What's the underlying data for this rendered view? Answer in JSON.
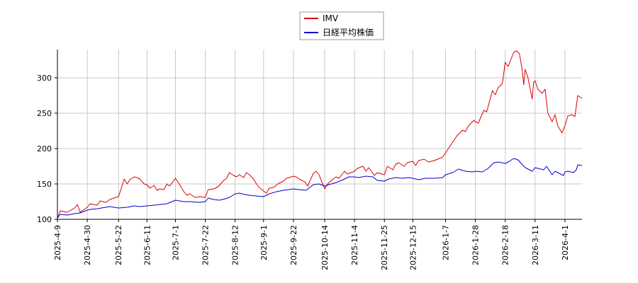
{
  "chart_data": {
    "type": "line",
    "title": "",
    "xlabel": "",
    "ylabel": "",
    "ylim": [
      100,
      340
    ],
    "xlim": [
      "2025-04-09",
      "2026-04-13"
    ],
    "grid": true,
    "legend_position": "top-center",
    "y_ticks": [
      100,
      150,
      200,
      250,
      300
    ],
    "x_ticks": [
      "2025-4-9",
      "2025-4-30",
      "2025-5-22",
      "2025-6-11",
      "2025-7-1",
      "2025-7-22",
      "2025-8-12",
      "2025-9-1",
      "2025-9-22",
      "2025-10-14",
      "2025-11-4",
      "2025-11-25",
      "2025-12-15",
      "2026-1-7",
      "2026-1-28",
      "2026-2-18",
      "2026-3-11",
      "2026-4-1"
    ],
    "x_tick_dates": [
      "2025-04-09",
      "2025-04-30",
      "2025-05-22",
      "2025-06-11",
      "2025-07-01",
      "2025-07-22",
      "2025-08-12",
      "2025-09-01",
      "2025-09-22",
      "2025-10-14",
      "2025-11-04",
      "2025-11-25",
      "2025-12-15",
      "2026-01-07",
      "2026-01-28",
      "2026-02-18",
      "2026-03-11",
      "2026-04-01"
    ],
    "series": [
      {
        "name": "IMV",
        "color": "#dd0000",
        "points": [
          [
            "2025-04-09",
            102
          ],
          [
            "2025-04-11",
            112
          ],
          [
            "2025-04-16",
            110
          ],
          [
            "2025-04-21",
            116
          ],
          [
            "2025-04-23",
            121
          ],
          [
            "2025-04-25",
            110
          ],
          [
            "2025-04-30",
            117
          ],
          [
            "2025-05-02",
            122
          ],
          [
            "2025-05-07",
            120
          ],
          [
            "2025-05-09",
            126
          ],
          [
            "2025-05-13",
            124
          ],
          [
            "2025-05-16",
            128
          ],
          [
            "2025-05-20",
            131
          ],
          [
            "2025-05-22",
            132
          ],
          [
            "2025-05-26",
            157
          ],
          [
            "2025-05-28",
            150
          ],
          [
            "2025-05-30",
            156
          ],
          [
            "2025-06-02",
            160
          ],
          [
            "2025-06-04",
            159
          ],
          [
            "2025-06-06",
            157
          ],
          [
            "2025-06-09",
            150
          ],
          [
            "2025-06-11",
            149
          ],
          [
            "2025-06-13",
            144
          ],
          [
            "2025-06-16",
            148
          ],
          [
            "2025-06-18",
            141
          ],
          [
            "2025-06-20",
            143
          ],
          [
            "2025-06-23",
            142
          ],
          [
            "2025-06-25",
            150
          ],
          [
            "2025-06-27",
            147
          ],
          [
            "2025-07-01",
            158
          ],
          [
            "2025-07-03",
            152
          ],
          [
            "2025-07-07",
            139
          ],
          [
            "2025-07-09",
            134
          ],
          [
            "2025-07-11",
            136
          ],
          [
            "2025-07-15",
            131
          ],
          [
            "2025-07-18",
            132
          ],
          [
            "2025-07-22",
            131
          ],
          [
            "2025-07-24",
            142
          ],
          [
            "2025-07-28",
            143
          ],
          [
            "2025-07-31",
            146
          ],
          [
            "2025-08-04",
            155
          ],
          [
            "2025-08-06",
            158
          ],
          [
            "2025-08-08",
            166
          ],
          [
            "2025-08-11",
            162
          ],
          [
            "2025-08-13",
            160
          ],
          [
            "2025-08-15",
            163
          ],
          [
            "2025-08-18",
            159
          ],
          [
            "2025-08-20",
            166
          ],
          [
            "2025-08-22",
            163
          ],
          [
            "2025-08-25",
            157
          ],
          [
            "2025-08-27",
            150
          ],
          [
            "2025-08-29",
            145
          ],
          [
            "2025-09-01",
            140
          ],
          [
            "2025-09-03",
            137
          ],
          [
            "2025-09-05",
            144
          ],
          [
            "2025-09-08",
            145
          ],
          [
            "2025-09-11",
            150
          ],
          [
            "2025-09-15",
            154
          ],
          [
            "2025-09-17",
            158
          ],
          [
            "2025-09-19",
            159
          ],
          [
            "2025-09-22",
            161
          ],
          [
            "2025-09-24",
            160
          ],
          [
            "2025-09-26",
            157
          ],
          [
            "2025-09-30",
            153
          ],
          [
            "2025-10-02",
            147
          ],
          [
            "2025-10-06",
            165
          ],
          [
            "2025-10-08",
            168
          ],
          [
            "2025-10-10",
            163
          ],
          [
            "2025-10-14",
            143
          ],
          [
            "2025-10-16",
            150
          ],
          [
            "2025-10-20",
            157
          ],
          [
            "2025-10-22",
            160
          ],
          [
            "2025-10-24",
            158
          ],
          [
            "2025-10-28",
            168
          ],
          [
            "2025-10-30",
            164
          ],
          [
            "2025-11-04",
            168
          ],
          [
            "2025-11-06",
            172
          ],
          [
            "2025-11-10",
            175
          ],
          [
            "2025-11-12",
            168
          ],
          [
            "2025-11-14",
            173
          ],
          [
            "2025-11-18",
            162
          ],
          [
            "2025-11-20",
            166
          ],
          [
            "2025-11-25",
            163
          ],
          [
            "2025-11-27",
            175
          ],
          [
            "2025-12-01",
            170
          ],
          [
            "2025-12-03",
            178
          ],
          [
            "2025-12-05",
            180
          ],
          [
            "2025-12-09",
            175
          ],
          [
            "2025-12-11",
            180
          ],
          [
            "2025-12-15",
            182
          ],
          [
            "2025-12-17",
            176
          ],
          [
            "2025-12-19",
            183
          ],
          [
            "2025-12-23",
            185
          ],
          [
            "2025-12-26",
            181
          ],
          [
            "2025-12-30",
            183
          ],
          [
            "2026-01-05",
            188
          ],
          [
            "2026-01-07",
            194
          ],
          [
            "2026-01-09",
            200
          ],
          [
            "2026-01-13",
            212
          ],
          [
            "2026-01-15",
            218
          ],
          [
            "2026-01-19",
            226
          ],
          [
            "2026-01-21",
            224
          ],
          [
            "2026-01-23",
            232
          ],
          [
            "2026-01-27",
            240
          ],
          [
            "2026-01-28",
            238
          ],
          [
            "2026-01-30",
            236
          ],
          [
            "2026-02-03",
            254
          ],
          [
            "2026-02-05",
            252
          ],
          [
            "2026-02-09",
            282
          ],
          [
            "2026-02-11",
            276
          ],
          [
            "2026-02-13",
            286
          ],
          [
            "2026-02-16",
            292
          ],
          [
            "2026-02-18",
            322
          ],
          [
            "2026-02-20",
            316
          ],
          [
            "2026-02-24",
            336
          ],
          [
            "2026-02-26",
            338
          ],
          [
            "2026-02-28",
            334
          ],
          [
            "2026-03-02",
            310
          ],
          [
            "2026-03-03",
            290
          ],
          [
            "2026-03-04",
            312
          ],
          [
            "2026-03-06",
            300
          ],
          [
            "2026-03-09",
            270
          ],
          [
            "2026-03-10",
            294
          ],
          [
            "2026-03-11",
            296
          ],
          [
            "2026-03-13",
            284
          ],
          [
            "2026-03-16",
            278
          ],
          [
            "2026-03-18",
            284
          ],
          [
            "2026-03-20",
            250
          ],
          [
            "2026-03-23",
            238
          ],
          [
            "2026-03-25",
            248
          ],
          [
            "2026-03-27",
            232
          ],
          [
            "2026-03-30",
            222
          ],
          [
            "2026-04-01",
            232
          ],
          [
            "2026-04-03",
            246
          ],
          [
            "2026-04-06",
            248
          ],
          [
            "2026-04-08",
            245
          ],
          [
            "2026-04-10",
            275
          ],
          [
            "2026-04-13",
            271
          ]
        ]
      },
      {
        "name": "日経平均株価",
        "color": "#0000cc",
        "points": [
          [
            "2025-04-09",
            102
          ],
          [
            "2025-04-11",
            107
          ],
          [
            "2025-04-16",
            106
          ],
          [
            "2025-04-21",
            108
          ],
          [
            "2025-04-25",
            109
          ],
          [
            "2025-04-30",
            113
          ],
          [
            "2025-05-02",
            114
          ],
          [
            "2025-05-07",
            115
          ],
          [
            "2025-05-13",
            117
          ],
          [
            "2025-05-16",
            118
          ],
          [
            "2025-05-22",
            116
          ],
          [
            "2025-05-28",
            117
          ],
          [
            "2025-06-02",
            119
          ],
          [
            "2025-06-06",
            118
          ],
          [
            "2025-06-11",
            119
          ],
          [
            "2025-06-16",
            120
          ],
          [
            "2025-06-20",
            121
          ],
          [
            "2025-06-25",
            122
          ],
          [
            "2025-07-01",
            127
          ],
          [
            "2025-07-07",
            125
          ],
          [
            "2025-07-11",
            125
          ],
          [
            "2025-07-18",
            124
          ],
          [
            "2025-07-22",
            125
          ],
          [
            "2025-07-24",
            130
          ],
          [
            "2025-07-28",
            128
          ],
          [
            "2025-08-01",
            127
          ],
          [
            "2025-08-05",
            129
          ],
          [
            "2025-08-08",
            131
          ],
          [
            "2025-08-12",
            136
          ],
          [
            "2025-08-15",
            137
          ],
          [
            "2025-08-19",
            135
          ],
          [
            "2025-08-22",
            134
          ],
          [
            "2025-08-27",
            133
          ],
          [
            "2025-09-01",
            132
          ],
          [
            "2025-09-05",
            136
          ],
          [
            "2025-09-10",
            139
          ],
          [
            "2025-09-15",
            141
          ],
          [
            "2025-09-19",
            142
          ],
          [
            "2025-09-22",
            143
          ],
          [
            "2025-09-26",
            142
          ],
          [
            "2025-10-01",
            141
          ],
          [
            "2025-10-06",
            149
          ],
          [
            "2025-10-10",
            150
          ],
          [
            "2025-10-14",
            147
          ],
          [
            "2025-10-17",
            149
          ],
          [
            "2025-10-22",
            152
          ],
          [
            "2025-10-27",
            156
          ],
          [
            "2025-10-31",
            160
          ],
          [
            "2025-11-04",
            160
          ],
          [
            "2025-11-07",
            159
          ],
          [
            "2025-11-12",
            161
          ],
          [
            "2025-11-17",
            160
          ],
          [
            "2025-11-20",
            155
          ],
          [
            "2025-11-25",
            154
          ],
          [
            "2025-11-28",
            157
          ],
          [
            "2025-12-03",
            159
          ],
          [
            "2025-12-08",
            158
          ],
          [
            "2025-12-12",
            159
          ],
          [
            "2025-12-15",
            158
          ],
          [
            "2025-12-19",
            156
          ],
          [
            "2025-12-24",
            158
          ],
          [
            "2025-12-30",
            158
          ],
          [
            "2026-01-05",
            159
          ],
          [
            "2026-01-07",
            163
          ],
          [
            "2026-01-12",
            166
          ],
          [
            "2026-01-16",
            171
          ],
          [
            "2026-01-21",
            168
          ],
          [
            "2026-01-26",
            167
          ],
          [
            "2026-01-28",
            168
          ],
          [
            "2026-02-02",
            167
          ],
          [
            "2026-02-06",
            172
          ],
          [
            "2026-02-10",
            180
          ],
          [
            "2026-02-13",
            181
          ],
          [
            "2026-02-18",
            179
          ],
          [
            "2026-02-20",
            181
          ],
          [
            "2026-02-24",
            186
          ],
          [
            "2026-02-27",
            184
          ],
          [
            "2026-03-03",
            175
          ],
          [
            "2026-03-05",
            172
          ],
          [
            "2026-03-09",
            168
          ],
          [
            "2026-03-11",
            173
          ],
          [
            "2026-03-13",
            172
          ],
          [
            "2026-03-17",
            170
          ],
          [
            "2026-03-19",
            175
          ],
          [
            "2026-03-23",
            163
          ],
          [
            "2026-03-25",
            168
          ],
          [
            "2026-03-27",
            166
          ],
          [
            "2026-03-31",
            162
          ],
          [
            "2026-04-01",
            167
          ],
          [
            "2026-04-03",
            168
          ],
          [
            "2026-04-07",
            166
          ],
          [
            "2026-04-09",
            170
          ],
          [
            "2026-04-10",
            177
          ],
          [
            "2026-04-13",
            176
          ]
        ]
      }
    ]
  }
}
